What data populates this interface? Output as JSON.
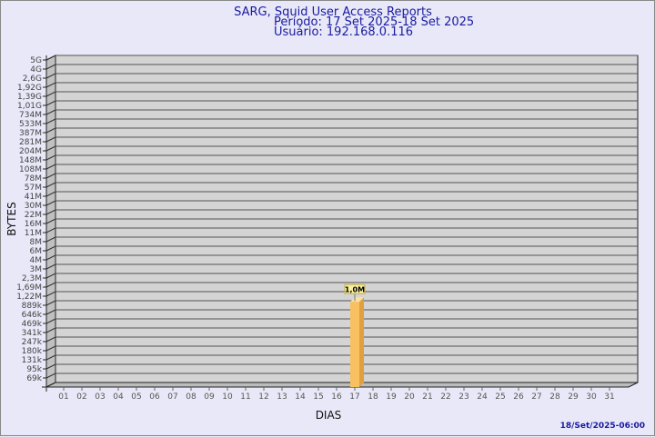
{
  "chart_data": {
    "type": "bar",
    "title": "SARG, Squid User Access Reports",
    "subtitle": [
      "Período: 17 Set 2025-18 Set 2025",
      "Usuário: 192.168.0.116"
    ],
    "xlabel": "DIAS",
    "ylabel": "BYTES",
    "yscale": "log",
    "y_ticks": [
      "5G",
      "4G",
      "2,6G",
      "1,92G",
      "1,39G",
      "1,01G",
      "734M",
      "533M",
      "387M",
      "281M",
      "204M",
      "148M",
      "108M",
      "78M",
      "57M",
      "41M",
      "30M",
      "22M",
      "16M",
      "11M",
      "8M",
      "6M",
      "4M",
      "3M",
      "2,3M",
      "1,69M",
      "1,22M",
      "889k",
      "646k",
      "469k",
      "341k",
      "247k",
      "180k",
      "131k",
      "95k",
      "69k"
    ],
    "categories": [
      "01",
      "02",
      "03",
      "04",
      "05",
      "06",
      "07",
      "08",
      "09",
      "10",
      "11",
      "12",
      "13",
      "14",
      "15",
      "16",
      "17",
      "18",
      "19",
      "20",
      "21",
      "22",
      "23",
      "24",
      "25",
      "26",
      "27",
      "28",
      "29",
      "30",
      "31"
    ],
    "bars": [
      {
        "category": "17",
        "value": 1000000,
        "label": "1,0M"
      }
    ],
    "grid": true,
    "bar_color": "#f8c060",
    "title_color": "#1a1aa0"
  },
  "footer": {
    "timestamp": "18/Set/2025-06:00"
  }
}
